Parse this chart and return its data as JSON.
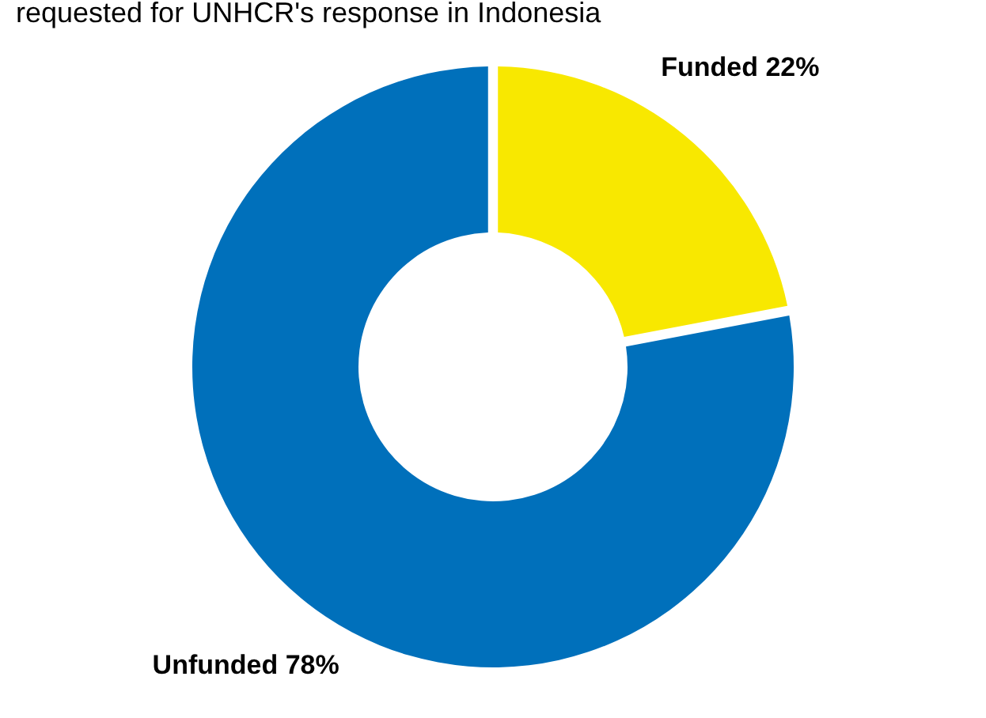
{
  "chart_data": {
    "type": "donut",
    "title": "requested for UNHCR's response in Indonesia",
    "categories": [
      "Funded",
      "Unfunded"
    ],
    "values": [
      22,
      78
    ],
    "colors": [
      "#f8e800",
      "#0070bb"
    ],
    "value_labels": [
      "22%",
      "78%"
    ],
    "legend": false
  }
}
